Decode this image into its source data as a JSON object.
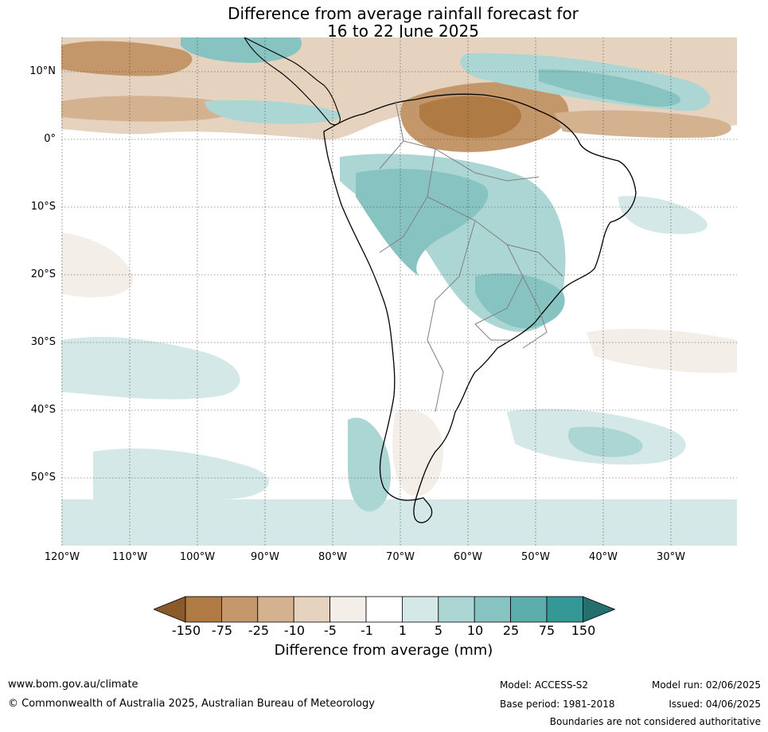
{
  "title": {
    "line1": "Difference from average rainfall forecast for",
    "line2": "16 to 22 June 2025"
  },
  "axes": {
    "lat_labels": [
      "10°N",
      "0°",
      "10°S",
      "20°S",
      "30°S",
      "40°S",
      "50°S"
    ],
    "lon_labels": [
      "120°W",
      "110°W",
      "100°W",
      "90°W",
      "80°W",
      "70°W",
      "60°W",
      "50°W",
      "40°W",
      "30°W"
    ]
  },
  "legend": {
    "title": "Difference from average (mm)",
    "tick_labels": [
      "-150",
      "-75",
      "-25",
      "-10",
      "-5",
      "-1",
      "1",
      "5",
      "10",
      "25",
      "75",
      "150"
    ],
    "colors": [
      "#8b5a2b",
      "#b07a45",
      "#c4976a",
      "#d4b28f",
      "#e6d3bf",
      "#f3eee8",
      "#ffffff",
      "#d4e9e7",
      "#acd6d4",
      "#86c3c1",
      "#5cadab",
      "#349896",
      "#25706e"
    ]
  },
  "footer": {
    "website": "www.bom.gov.au/climate",
    "copyright": "© Commonwealth of Australia 2025, Australian Bureau of Meteorology",
    "model": "Model: ACCESS-S2",
    "base_period": "Base period: 1981-2018",
    "model_run": "Model run: 02/06/2025",
    "issued": "Issued: 04/06/2025",
    "disclaimer": "Boundaries are not considered authoritative"
  }
}
